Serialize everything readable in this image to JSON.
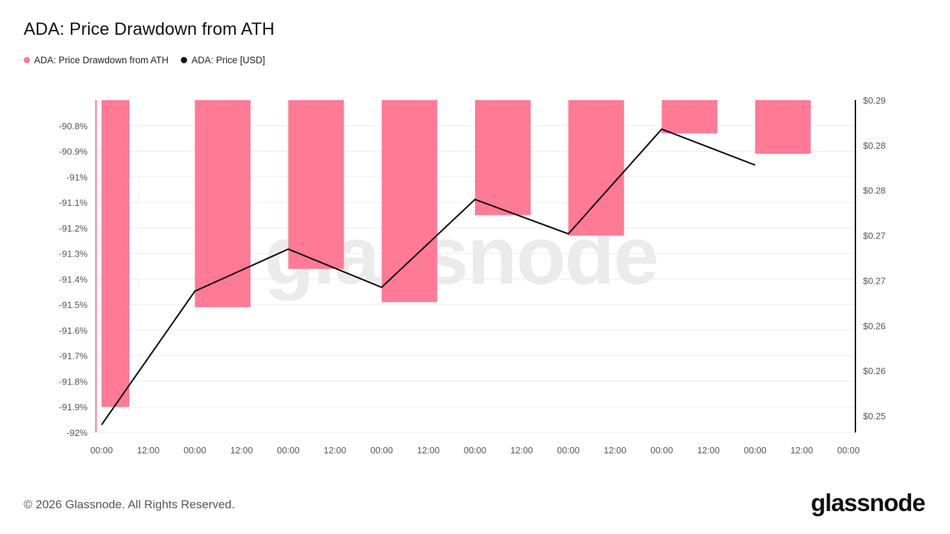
{
  "title": "ADA: Price Drawdown from ATH",
  "legend": [
    {
      "label": "ADA: Price Drawdown from ATH",
      "color": "#ff7a95"
    },
    {
      "label": "ADA: Price [USD]",
      "color": "#111111"
    }
  ],
  "watermark": "glassnode",
  "footer": {
    "copyright": "© 2026 Glassnode. All Rights Reserved.",
    "logo": "glassnode"
  },
  "colors": {
    "bar": "#ff7a95",
    "line": "#111111",
    "grid": "#ececec",
    "axis_text": "#555555"
  },
  "chart_data": {
    "type": "bar",
    "title": "ADA: Price Drawdown from ATH",
    "x_tick_labels": [
      "00:00",
      "12:00",
      "00:00",
      "12:00",
      "00:00",
      "12:00",
      "00:00",
      "12:00",
      "00:00",
      "12:00",
      "00:00",
      "12:00",
      "00:00",
      "12:00",
      "00:00",
      "12:00",
      "00:00"
    ],
    "left_axis": {
      "ticks": [
        "-90.8%",
        "-90.9%",
        "-91%",
        "-91.1%",
        "-91.2%",
        "-91.3%",
        "-91.4%",
        "-91.5%",
        "-91.6%",
        "-91.7%",
        "-91.8%",
        "-91.9%",
        "-92%"
      ],
      "ylim": [
        -92.0,
        -90.7
      ]
    },
    "right_axis": {
      "ticks": [
        "$0.29",
        "$0.28",
        "$0.28",
        "$0.27",
        "$0.27",
        "$0.26",
        "$0.26",
        "$0.25"
      ],
      "ylim": [
        0.246,
        0.2895
      ]
    },
    "series": [
      {
        "name": "ADA: Price Drawdown from ATH",
        "type": "bar",
        "axis": "left",
        "x": [
          0,
          1,
          2,
          3,
          4,
          5,
          6,
          7
        ],
        "values": [
          -91.9,
          -91.51,
          -91.36,
          -91.49,
          -91.15,
          -91.23,
          -90.83,
          -90.91
        ]
      },
      {
        "name": "ADA: Price [USD]",
        "type": "line",
        "axis": "right",
        "x": [
          0,
          1,
          2,
          3,
          4,
          5,
          6,
          7
        ],
        "values": [
          0.247,
          0.2645,
          0.27,
          0.265,
          0.2765,
          0.272,
          0.2857,
          0.281
        ]
      }
    ],
    "grid": true,
    "legend_position": "top-left"
  }
}
